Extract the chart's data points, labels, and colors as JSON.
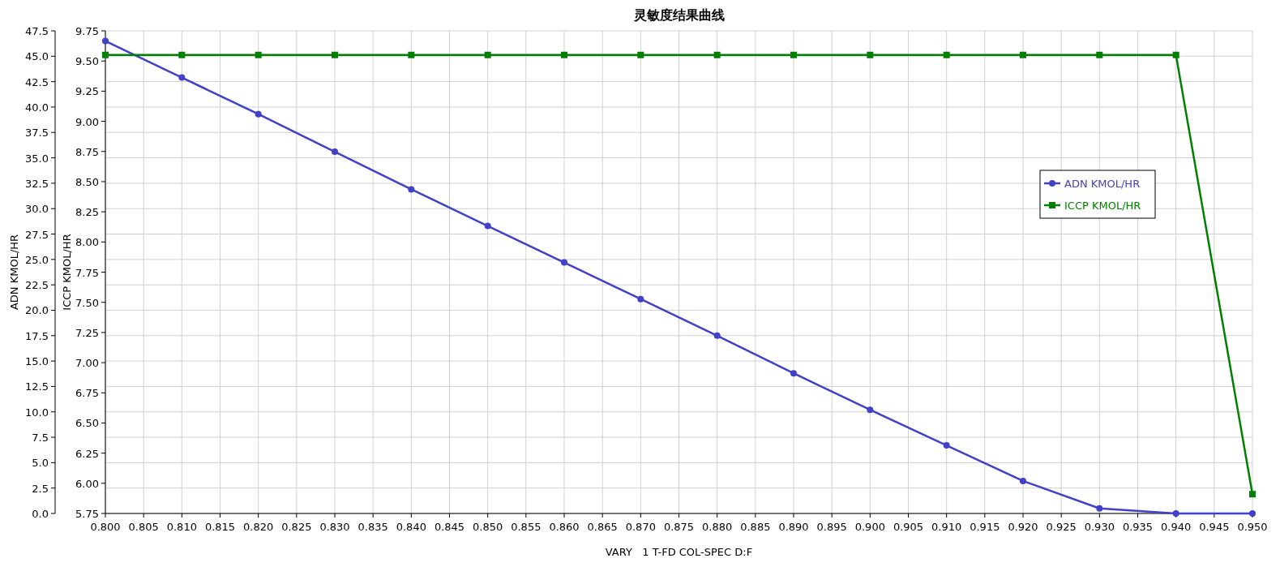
{
  "chart_data": {
    "type": "line",
    "title": "灵敏度结果曲线",
    "xlabel": "VARY   1 T-FD COL-SPEC D:F",
    "ylabel": "ADN KMOL/HR",
    "y2label": "ICCP KMOL/HR",
    "x": [
      0.8,
      0.81,
      0.82,
      0.83,
      0.84,
      0.85,
      0.86,
      0.87,
      0.88,
      0.89,
      0.9,
      0.91,
      0.92,
      0.93,
      0.94,
      0.95
    ],
    "series": [
      {
        "name": "ADN KMOL/HR",
        "color": "#4040c8",
        "marker": "circle",
        "values": [
          46.5,
          42.9,
          39.3,
          35.6,
          31.9,
          28.3,
          24.7,
          21.1,
          17.5,
          13.8,
          10.2,
          6.7,
          3.2,
          0.5,
          0,
          0
        ]
      },
      {
        "name": "ICCP KMOL/HR",
        "color": "#008000",
        "marker": "square",
        "axis": "y2",
        "values": [
          9.55,
          9.55,
          9.55,
          9.55,
          9.55,
          9.55,
          9.55,
          9.55,
          9.55,
          9.55,
          9.55,
          9.55,
          9.55,
          9.55,
          9.55,
          5.91
        ]
      }
    ],
    "xlim": [
      0.8,
      0.95
    ],
    "xticks": [
      {
        "value": 0.8,
        "label": "0.800"
      },
      {
        "value": 0.805,
        "label": "0.805"
      },
      {
        "value": 0.81,
        "label": "0.810"
      },
      {
        "value": 0.815,
        "label": "0.815"
      },
      {
        "value": 0.82,
        "label": "0.820"
      },
      {
        "value": 0.825,
        "label": "0.825"
      },
      {
        "value": 0.83,
        "label": "0.830"
      },
      {
        "value": 0.835,
        "label": "0.835"
      },
      {
        "value": 0.84,
        "label": "0.840"
      },
      {
        "value": 0.845,
        "label": "0.845"
      },
      {
        "value": 0.85,
        "label": "0.850"
      },
      {
        "value": 0.855,
        "label": "0.855"
      },
      {
        "value": 0.86,
        "label": "0.860"
      },
      {
        "value": 0.865,
        "label": "0.865"
      },
      {
        "value": 0.87,
        "label": "0.870"
      },
      {
        "value": 0.875,
        "label": "0.875"
      },
      {
        "value": 0.88,
        "label": "0.880"
      },
      {
        "value": 0.885,
        "label": "0.885"
      },
      {
        "value": 0.89,
        "label": "0.890"
      },
      {
        "value": 0.895,
        "label": "0.895"
      },
      {
        "value": 0.9,
        "label": "0.900"
      },
      {
        "value": 0.905,
        "label": "0.905"
      },
      {
        "value": 0.91,
        "label": "0.910"
      },
      {
        "value": 0.915,
        "label": "0.915"
      },
      {
        "value": 0.92,
        "label": "0.920"
      },
      {
        "value": 0.925,
        "label": "0.925"
      },
      {
        "value": 0.93,
        "label": "0.930"
      },
      {
        "value": 0.935,
        "label": "0.935"
      },
      {
        "value": 0.94,
        "label": "0.940"
      },
      {
        "value": 0.945,
        "label": "0.945"
      },
      {
        "value": 0.95,
        "label": "0.950"
      }
    ],
    "ylim": [
      0,
      47.5
    ],
    "yticks": [
      {
        "value": 0,
        "label": "0.0"
      },
      2.5,
      {
        "value": 5,
        "label": "5.0"
      },
      7.5,
      {
        "value": 10,
        "label": "10.0"
      },
      12.5,
      {
        "value": 15,
        "label": "15.0"
      },
      17.5,
      {
        "value": 20,
        "label": "20.0"
      },
      22.5,
      {
        "value": 25,
        "label": "25.0"
      },
      27.5,
      {
        "value": 30,
        "label": "30.0"
      },
      32.5,
      {
        "value": 35,
        "label": "35.0"
      },
      37.5,
      {
        "value": 40,
        "label": "40.0"
      },
      42.5,
      {
        "value": 45,
        "label": "45.0"
      },
      47.5
    ],
    "y2lim": [
      5.75,
      9.75
    ],
    "y2ticks": [
      5.75,
      {
        "value": 6,
        "label": "6.00"
      },
      6.25,
      {
        "value": 6.5,
        "label": "6.50"
      },
      6.75,
      {
        "value": 7,
        "label": "7.00"
      },
      7.25,
      {
        "value": 7.5,
        "label": "7.50"
      },
      7.75,
      {
        "value": 8,
        "label": "8.00"
      },
      8.25,
      {
        "value": 8.5,
        "label": "8.50"
      },
      8.75,
      {
        "value": 9,
        "label": "9.00"
      },
      9.25,
      {
        "value": 9.5,
        "label": "9.50"
      },
      9.75
    ],
    "grid": true,
    "legend": "right"
  }
}
